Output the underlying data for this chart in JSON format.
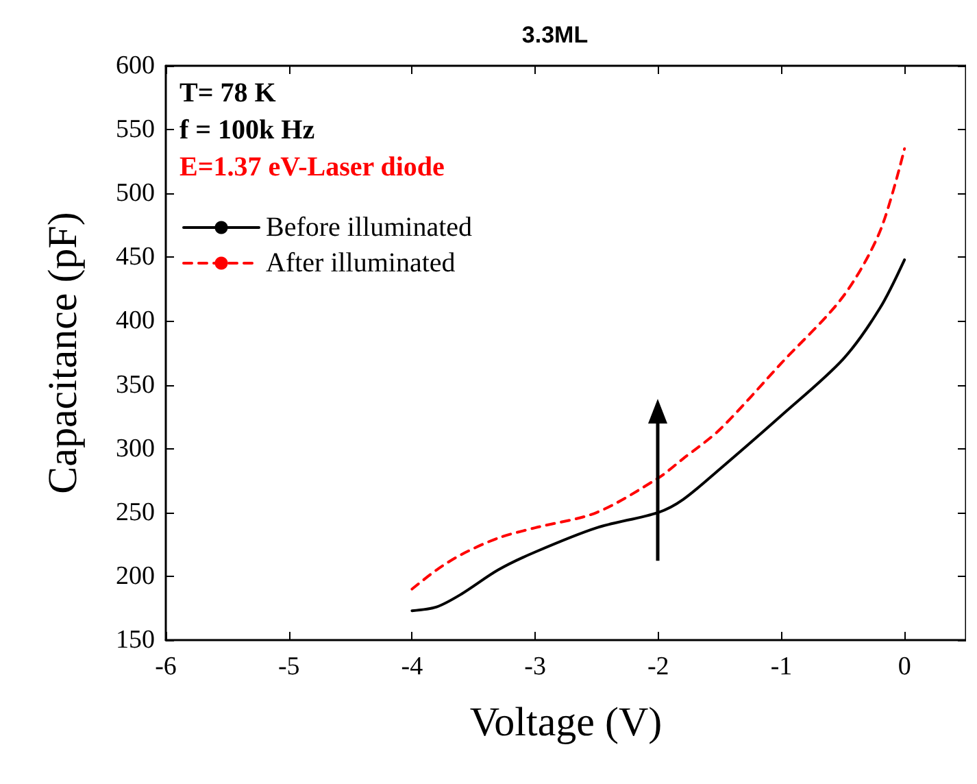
{
  "chart_data": {
    "type": "line",
    "title": "3.3ML",
    "xlabel": "Voltage (V)",
    "ylabel": "Capacitance (pF)",
    "x": [
      -4,
      -3.8,
      -3.6,
      -3.3,
      -3,
      -2.5,
      -2,
      -1.8,
      -1.5,
      -1,
      -0.5,
      -0.2,
      0
    ],
    "series": [
      {
        "name": "Before illuminated",
        "color": "#000000",
        "line_style": "solid",
        "values": [
          173,
          176,
          186,
          205,
          219,
          238,
          250,
          260,
          284,
          326,
          370,
          410,
          448
        ]
      },
      {
        "name": "After illuminated",
        "color": "#ff0000",
        "line_style": "dashed",
        "values": [
          190,
          205,
          217,
          230,
          238,
          250,
          277,
          292,
          315,
          367,
          419,
          470,
          535
        ]
      }
    ],
    "annotations": [
      "T= 78 K",
      "f = 100k Hz",
      "E=1.37 eV-Laser diode"
    ],
    "xlim": [
      -6,
      0.5
    ],
    "xticks": [
      -6,
      -5,
      -4,
      -3,
      -2,
      -1,
      0
    ],
    "ylim": [
      150,
      600
    ],
    "yticks": [
      150,
      200,
      250,
      300,
      350,
      400,
      450,
      500,
      550,
      600
    ],
    "grid": false,
    "legend": "top left",
    "marker": "none"
  }
}
